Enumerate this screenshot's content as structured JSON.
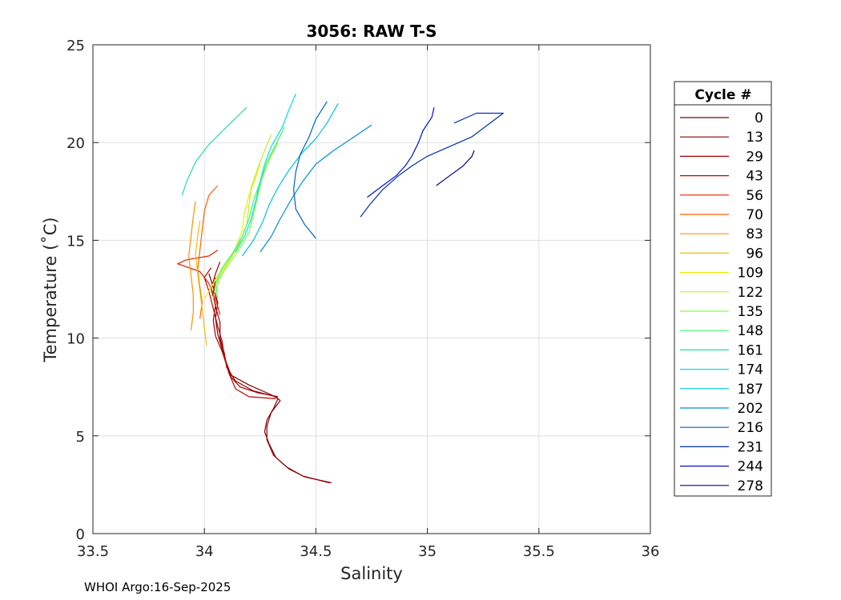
{
  "chart_data": {
    "type": "line",
    "title": "3056: RAW T-S",
    "xlabel": "Salinity",
    "ylabel": "Temperature (˚C)",
    "xlim": [
      33.5,
      36
    ],
    "ylim": [
      0,
      25
    ],
    "xticks": [
      33.5,
      34,
      34.5,
      35,
      35.5,
      36
    ],
    "xtick_labels": [
      "33.5",
      "34",
      "34.5",
      "35",
      "35.5",
      "36"
    ],
    "yticks": [
      0,
      5,
      10,
      15,
      20,
      25
    ],
    "ytick_labels": [
      "0",
      "5",
      "10",
      "15",
      "20",
      "25"
    ],
    "grid": true,
    "legend": {
      "title": "Cycle #",
      "position": "outside-right",
      "entries": [
        {
          "label": "0",
          "color": "#800000"
        },
        {
          "label": "13",
          "color": "#8d0000"
        },
        {
          "label": "29",
          "color": "#a50000"
        },
        {
          "label": "43",
          "color": "#c00000"
        },
        {
          "label": "56",
          "color": "#e02000"
        },
        {
          "label": "70",
          "color": "#ff6000"
        },
        {
          "label": "83",
          "color": "#ff9000"
        },
        {
          "label": "96",
          "color": "#f0c000"
        },
        {
          "label": "109",
          "color": "#e8f000"
        },
        {
          "label": "122",
          "color": "#c0f020"
        },
        {
          "label": "135",
          "color": "#80ff40"
        },
        {
          "label": "148",
          "color": "#40f070"
        },
        {
          "label": "161",
          "color": "#20e0a0"
        },
        {
          "label": "174",
          "color": "#00e0e0"
        },
        {
          "label": "187",
          "color": "#00c0e0"
        },
        {
          "label": "202",
          "color": "#0090d0"
        },
        {
          "label": "216",
          "color": "#0060c0"
        },
        {
          "label": "231",
          "color": "#0030b0"
        },
        {
          "label": "244",
          "color": "#0010d0"
        },
        {
          "label": "278",
          "color": "#000090"
        }
      ]
    },
    "series": [
      {
        "name": "0",
        "color": "#800000",
        "points": [
          [
            34.57,
            2.6
          ],
          [
            34.45,
            2.9
          ],
          [
            34.38,
            3.3
          ],
          [
            34.32,
            3.9
          ],
          [
            34.29,
            4.6
          ],
          [
            34.27,
            5.2
          ],
          [
            34.28,
            5.8
          ],
          [
            34.31,
            6.4
          ],
          [
            34.33,
            6.9
          ],
          [
            34.3,
            7.1
          ],
          [
            34.2,
            7.6
          ],
          [
            34.12,
            8.1
          ],
          [
            34.1,
            8.7
          ],
          [
            34.08,
            9.4
          ],
          [
            34.06,
            10.2
          ],
          [
            34.05,
            11.0
          ],
          [
            34.06,
            11.8
          ],
          [
            34.04,
            12.6
          ],
          [
            34.02,
            13.3
          ]
        ]
      },
      {
        "name": "13",
        "color": "#8d0000",
        "points": [
          [
            34.56,
            2.6
          ],
          [
            34.44,
            2.95
          ],
          [
            34.37,
            3.4
          ],
          [
            34.31,
            4.0
          ],
          [
            34.28,
            4.8
          ],
          [
            34.28,
            5.5
          ],
          [
            34.3,
            6.2
          ],
          [
            34.34,
            6.8
          ],
          [
            34.32,
            7.0
          ],
          [
            34.22,
            7.3
          ],
          [
            34.14,
            7.8
          ],
          [
            34.1,
            8.5
          ],
          [
            34.09,
            9.2
          ],
          [
            34.07,
            10.0
          ],
          [
            34.07,
            10.8
          ],
          [
            34.05,
            11.6
          ],
          [
            34.04,
            12.3
          ],
          [
            34.05,
            13.1
          ]
        ]
      },
      {
        "name": "29",
        "color": "#a50000",
        "points": [
          [
            34.33,
            7.0
          ],
          [
            34.24,
            7.2
          ],
          [
            34.16,
            7.5
          ],
          [
            34.12,
            8.0
          ],
          [
            34.1,
            8.6
          ],
          [
            34.08,
            9.3
          ],
          [
            34.05,
            10.1
          ],
          [
            34.04,
            10.9
          ],
          [
            34.05,
            11.7
          ],
          [
            34.03,
            12.5
          ],
          [
            34.05,
            13.3
          ],
          [
            34.07,
            13.9
          ]
        ]
      },
      {
        "name": "43",
        "color": "#c00000",
        "points": [
          [
            34.32,
            6.9
          ],
          [
            34.2,
            7.0
          ],
          [
            34.14,
            7.4
          ],
          [
            34.11,
            8.2
          ],
          [
            34.09,
            9.0
          ],
          [
            34.08,
            9.8
          ],
          [
            34.06,
            10.6
          ],
          [
            34.04,
            11.5
          ],
          [
            34.02,
            12.4
          ],
          [
            34.0,
            13.1
          ],
          [
            34.03,
            13.6
          ]
        ]
      },
      {
        "name": "56",
        "color": "#e02000",
        "points": [
          [
            34.07,
            11.2
          ],
          [
            34.05,
            12.0
          ],
          [
            34.02,
            12.8
          ],
          [
            33.98,
            13.4
          ],
          [
            33.88,
            13.8
          ],
          [
            33.92,
            14.0
          ],
          [
            34.02,
            14.2
          ],
          [
            34.06,
            14.5
          ]
        ]
      },
      {
        "name": "70",
        "color": "#ff6000",
        "points": [
          [
            34.06,
            17.8
          ],
          [
            34.02,
            17.3
          ],
          [
            34.0,
            16.5
          ],
          [
            33.99,
            15.5
          ],
          [
            33.98,
            14.5
          ],
          [
            33.97,
            13.5
          ],
          [
            33.98,
            12.6
          ],
          [
            33.99,
            11.8
          ],
          [
            33.98,
            11.0
          ]
        ]
      },
      {
        "name": "83",
        "color": "#ff9000",
        "points": [
          [
            33.96,
            17.0
          ],
          [
            33.95,
            16.2
          ],
          [
            33.94,
            15.2
          ],
          [
            33.93,
            14.2
          ],
          [
            33.94,
            13.2
          ],
          [
            33.95,
            12.2
          ],
          [
            33.95,
            11.3
          ],
          [
            33.94,
            10.4
          ]
        ]
      },
      {
        "name": "96",
        "color": "#f0c000",
        "points": [
          [
            33.98,
            16.0
          ],
          [
            33.97,
            15.2
          ],
          [
            33.96,
            14.3
          ],
          [
            33.97,
            13.3
          ],
          [
            33.98,
            12.4
          ],
          [
            33.99,
            11.5
          ],
          [
            34.0,
            10.5
          ],
          [
            34.01,
            9.6
          ]
        ]
      },
      {
        "name": "109",
        "color": "#e8f000",
        "points": [
          [
            34.25,
            18.9
          ],
          [
            34.23,
            18.2
          ],
          [
            34.2,
            17.3
          ],
          [
            34.18,
            16.4
          ],
          [
            34.17,
            15.5
          ],
          [
            34.14,
            14.6
          ],
          [
            34.1,
            13.8
          ],
          [
            34.06,
            13.2
          ],
          [
            34.03,
            12.6
          ],
          [
            34.0,
            12.0
          ]
        ]
      },
      {
        "name": "122",
        "color": "#c0f020",
        "points": [
          [
            34.3,
            20.4
          ],
          [
            34.27,
            19.6
          ],
          [
            34.24,
            18.7
          ],
          [
            34.21,
            17.7
          ],
          [
            34.2,
            16.8
          ],
          [
            34.19,
            15.8
          ],
          [
            34.16,
            14.9
          ],
          [
            34.12,
            14.1
          ],
          [
            34.08,
            13.4
          ],
          [
            34.05,
            12.7
          ],
          [
            34.04,
            12.0
          ]
        ]
      },
      {
        "name": "135",
        "color": "#80ff40",
        "points": [
          [
            34.33,
            20.0
          ],
          [
            34.29,
            19.1
          ],
          [
            34.26,
            18.2
          ],
          [
            34.24,
            17.3
          ],
          [
            34.22,
            16.3
          ],
          [
            34.2,
            15.4
          ],
          [
            34.16,
            14.6
          ],
          [
            34.11,
            13.8
          ],
          [
            34.07,
            13.1
          ],
          [
            34.05,
            12.4
          ]
        ]
      },
      {
        "name": "148",
        "color": "#40f070",
        "points": [
          [
            34.36,
            20.8
          ],
          [
            34.32,
            19.9
          ],
          [
            34.28,
            19.0
          ],
          [
            34.25,
            18.0
          ],
          [
            34.22,
            17.0
          ],
          [
            34.2,
            16.1
          ],
          [
            34.17,
            15.2
          ],
          [
            34.13,
            14.4
          ],
          [
            34.08,
            13.6
          ],
          [
            34.05,
            12.8
          ],
          [
            34.06,
            12.0
          ]
        ]
      },
      {
        "name": "161",
        "color": "#20e0a0",
        "points": [
          [
            34.19,
            21.8
          ],
          [
            34.1,
            20.8
          ],
          [
            34.02,
            19.9
          ],
          [
            33.96,
            19.0
          ],
          [
            33.92,
            18.0
          ],
          [
            33.9,
            17.3
          ]
        ]
      },
      {
        "name": "174",
        "color": "#00e0e0",
        "points": [
          [
            34.41,
            22.5
          ],
          [
            34.38,
            21.7
          ],
          [
            34.35,
            20.8
          ],
          [
            34.3,
            19.8
          ],
          [
            34.27,
            18.9
          ],
          [
            34.25,
            18.0
          ],
          [
            34.23,
            17.0
          ],
          [
            34.21,
            16.1
          ],
          [
            34.18,
            15.2
          ],
          [
            34.14,
            14.4
          ]
        ]
      },
      {
        "name": "187",
        "color": "#00c0e0",
        "points": [
          [
            34.6,
            22.0
          ],
          [
            34.55,
            21.0
          ],
          [
            34.5,
            20.2
          ],
          [
            34.44,
            19.5
          ],
          [
            34.38,
            18.6
          ],
          [
            34.33,
            17.7
          ],
          [
            34.29,
            16.8
          ],
          [
            34.26,
            15.9
          ],
          [
            34.22,
            15.0
          ],
          [
            34.17,
            14.2
          ]
        ]
      },
      {
        "name": "202",
        "color": "#0090d0",
        "points": [
          [
            34.75,
            20.9
          ],
          [
            34.66,
            20.2
          ],
          [
            34.58,
            19.6
          ],
          [
            34.5,
            18.9
          ],
          [
            34.44,
            18.0
          ],
          [
            34.39,
            17.1
          ],
          [
            34.34,
            16.1
          ],
          [
            34.3,
            15.2
          ],
          [
            34.25,
            14.4
          ]
        ]
      },
      {
        "name": "216",
        "color": "#0060c0",
        "points": [
          [
            34.55,
            22.1
          ],
          [
            34.5,
            21.2
          ],
          [
            34.47,
            20.3
          ],
          [
            34.43,
            19.4
          ],
          [
            34.41,
            18.5
          ],
          [
            34.4,
            17.6
          ],
          [
            34.41,
            16.6
          ],
          [
            34.45,
            15.8
          ],
          [
            34.5,
            15.1
          ]
        ]
      },
      {
        "name": "231",
        "color": "#0030b0",
        "points": [
          [
            34.7,
            16.2
          ],
          [
            34.74,
            16.8
          ],
          [
            34.8,
            17.6
          ],
          [
            34.87,
            18.3
          ],
          [
            34.93,
            18.8
          ],
          [
            35.0,
            19.3
          ],
          [
            35.2,
            20.3
          ],
          [
            35.34,
            21.5
          ],
          [
            35.22,
            21.5
          ],
          [
            35.12,
            21.0
          ]
        ]
      },
      {
        "name": "244",
        "color": "#0010d0",
        "points": [
          [
            34.73,
            17.2
          ],
          [
            34.8,
            17.8
          ],
          [
            34.86,
            18.3
          ],
          [
            34.9,
            18.8
          ],
          [
            34.93,
            19.3
          ],
          [
            34.96,
            20.0
          ],
          [
            34.98,
            20.6
          ],
          [
            35.02,
            21.3
          ],
          [
            35.03,
            21.8
          ]
        ]
      },
      {
        "name": "278",
        "color": "#000090",
        "points": [
          [
            35.04,
            17.8
          ],
          [
            35.1,
            18.3
          ],
          [
            35.16,
            18.8
          ],
          [
            35.2,
            19.3
          ],
          [
            35.21,
            19.6
          ]
        ]
      }
    ]
  },
  "footer": {
    "text": "WHOI Argo:16-Sep-2025"
  }
}
